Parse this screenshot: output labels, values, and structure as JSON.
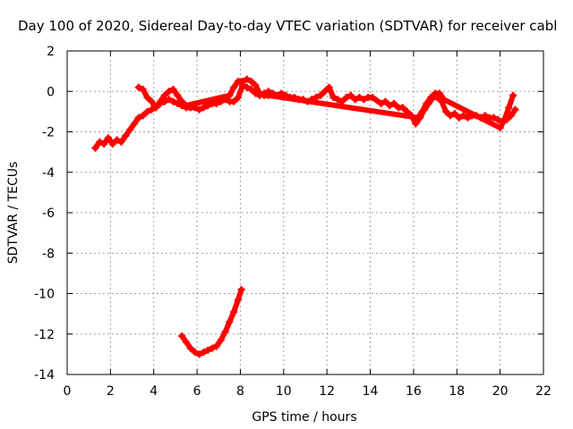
{
  "chart_data": {
    "type": "scatter",
    "title": "Day 100 of 2020, Sidereal Day-to-day VTEC variation (SDTVAR) for receiver cabl",
    "xlabel": "GPS time / hours",
    "ylabel": "SDTVAR / TECUs",
    "xlim": [
      0,
      22
    ],
    "ylim": [
      -14,
      2
    ],
    "xticks": [
      0,
      2,
      4,
      6,
      8,
      10,
      12,
      14,
      16,
      18,
      20,
      22
    ],
    "yticks": [
      2,
      0,
      -2,
      -4,
      -6,
      -8,
      -10,
      -12,
      -14
    ],
    "grid": true,
    "marker_color": "#ff0000",
    "series": [
      {
        "name": "main",
        "x": [
          1.3,
          1.5,
          1.7,
          1.9,
          2.1,
          2.3,
          2.5,
          2.7,
          2.9,
          3.1,
          3.3,
          3.5,
          3.7,
          3.9,
          4.1,
          4.3,
          4.5,
          4.7,
          4.9,
          5.1,
          5.3,
          5.5,
          5.7,
          5.9,
          6.1,
          6.3,
          6.5,
          6.7,
          6.9,
          7.1,
          7.3,
          7.5,
          7.7,
          7.9,
          8.1,
          8.3,
          8.5,
          8.7,
          8.9,
          9.1,
          9.3,
          9.5,
          9.7,
          9.9,
          10.1,
          10.3,
          10.5,
          10.7,
          10.9,
          11.1,
          11.3,
          11.5,
          11.7,
          11.9,
          12.1,
          12.3,
          12.5,
          12.7,
          12.9,
          13.1,
          13.3,
          13.5,
          13.7,
          13.9,
          14.1,
          14.5,
          14.7,
          14.9,
          15.1,
          15.3,
          15.5,
          15.7,
          15.9,
          16.1,
          16.3,
          16.5,
          16.7,
          16.9,
          17.1,
          17.3,
          17.5,
          17.7,
          17.9,
          18.1,
          18.3,
          18.5,
          18.7,
          18.9,
          19.1,
          19.3,
          19.5,
          19.7,
          19.9,
          20.1,
          20.3,
          20.5,
          20.7
        ],
        "y": [
          -2.8,
          -2.5,
          -2.6,
          -2.3,
          -2.6,
          -2.4,
          -2.5,
          -2.2,
          -1.9,
          -1.6,
          -1.3,
          -1.2,
          -1.0,
          -0.9,
          -0.8,
          -0.6,
          -0.5,
          -0.4,
          -0.5,
          -0.6,
          -0.7,
          -0.8,
          -0.8,
          -0.8,
          -0.9,
          -0.8,
          -0.7,
          -0.6,
          -0.6,
          -0.5,
          -0.4,
          -0.5,
          -0.5,
          -0.3,
          0.3,
          0.2,
          0.1,
          -0.1,
          -0.2,
          -0.1,
          0.0,
          -0.1,
          -0.2,
          -0.1,
          -0.2,
          -0.3,
          -0.3,
          -0.4,
          -0.4,
          -0.5,
          -0.4,
          -0.3,
          -0.2,
          0.0,
          0.2,
          -0.3,
          -0.4,
          -0.5,
          -0.3,
          -0.2,
          -0.4,
          -0.3,
          -0.4,
          -0.3,
          -0.3,
          -0.6,
          -0.5,
          -0.7,
          -0.6,
          -0.8,
          -0.8,
          -1.0,
          -1.2,
          -1.6,
          -1.3,
          -0.9,
          -0.6,
          -0.3,
          -0.3,
          -0.5,
          -1.0,
          -1.2,
          -1.1,
          -1.3,
          -1.2,
          -1.3,
          -1.2,
          -1.2,
          -1.3,
          -1.2,
          -1.3,
          -1.3,
          -1.4,
          -1.5,
          -1.4,
          -1.2,
          -0.9
        ]
      },
      {
        "name": "upper_branch",
        "x": [
          3.3,
          3.5,
          3.7,
          3.9,
          4.1,
          4.3,
          4.5,
          4.7,
          4.9,
          5.1,
          5.3,
          5.5,
          7.5,
          7.7,
          7.9,
          8.1,
          8.3,
          8.5,
          8.7,
          8.9,
          9.1,
          9.3,
          16.2,
          16.4,
          16.6,
          16.8,
          17.0,
          17.2,
          17.4,
          20.0,
          20.2,
          20.4,
          20.6
        ],
        "y": [
          0.2,
          0.1,
          -0.3,
          -0.5,
          -0.8,
          -0.5,
          -0.2,
          0.0,
          0.1,
          -0.2,
          -0.5,
          -0.7,
          -0.2,
          0.2,
          0.5,
          0.5,
          0.6,
          0.5,
          0.3,
          -0.1,
          -0.2,
          -0.2,
          -1.3,
          -1.0,
          -0.6,
          -0.3,
          -0.1,
          -0.1,
          -0.4,
          -1.8,
          -1.4,
          -0.8,
          -0.2
        ]
      },
      {
        "name": "outlier_segment",
        "x": [
          5.3,
          5.5,
          5.7,
          5.9,
          6.1,
          6.3,
          6.5,
          6.7,
          6.9,
          7.1,
          7.3,
          7.5,
          7.7,
          7.9,
          8.05
        ],
        "y": [
          -12.1,
          -12.4,
          -12.7,
          -12.9,
          -13.0,
          -12.9,
          -12.8,
          -12.7,
          -12.6,
          -12.3,
          -11.9,
          -11.4,
          -10.9,
          -10.3,
          -9.8
        ]
      }
    ]
  }
}
